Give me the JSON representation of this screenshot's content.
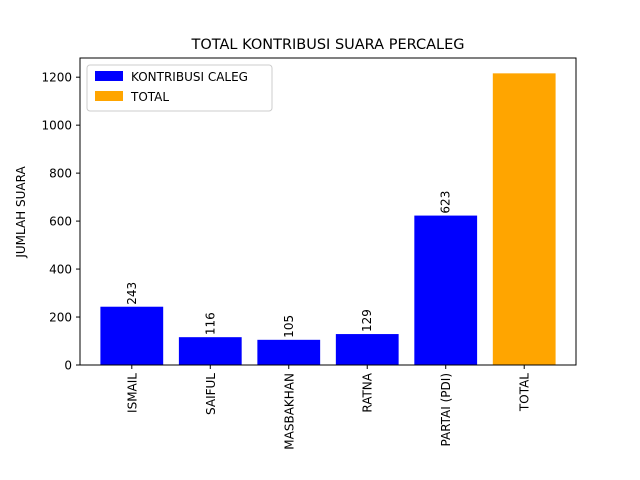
{
  "chart_data": {
    "type": "bar",
    "title": "TOTAL KONTRIBUSI SUARA PERCALEG",
    "xlabel": "",
    "ylabel": "JUMLAH SUARA",
    "ylim": [
      0,
      1280
    ],
    "yticks": [
      0,
      200,
      400,
      600,
      800,
      1000,
      1200
    ],
    "grid": false,
    "legend_position": "top-left",
    "categories": [
      "ISMAIL",
      "SAIFUL",
      "MASBAKHAN",
      "RATNA",
      "PARTAI (PDI)",
      "TOTAL"
    ],
    "series": [
      {
        "name": "KONTRIBUSI CALEG",
        "color": "#0000ff",
        "values": [
          243,
          116,
          105,
          129,
          623,
          null
        ],
        "data_labels": [
          "243",
          "116",
          "105",
          "129",
          "623",
          null
        ]
      },
      {
        "name": "TOTAL",
        "color": "#ffa500",
        "values": [
          null,
          null,
          null,
          null,
          null,
          1216
        ],
        "data_labels": [
          null,
          null,
          null,
          null,
          null,
          null
        ]
      }
    ]
  }
}
